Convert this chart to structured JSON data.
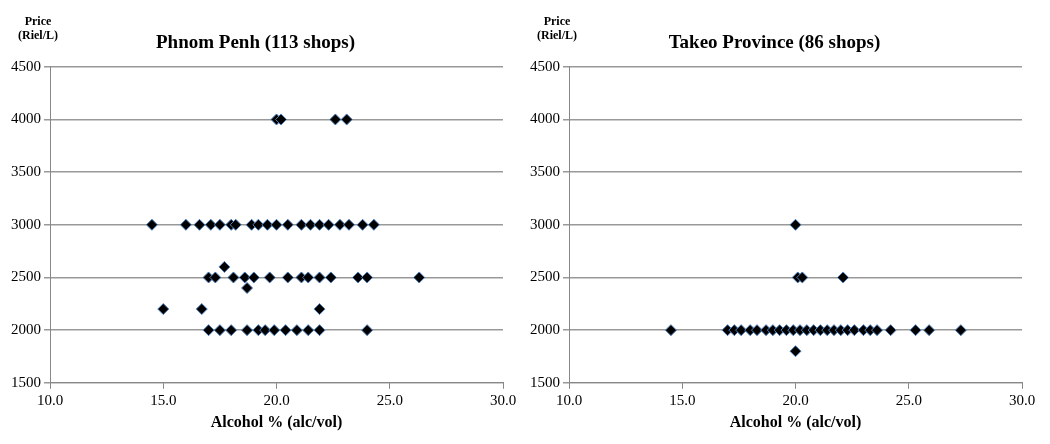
{
  "chart_data": [
    {
      "type": "scatter",
      "title": "Phnom Penh (113 shops)",
      "xlabel": "Alcohol % (alc/vol)",
      "ylabel": "Price (Riel/L)",
      "xlim": [
        10,
        30
      ],
      "xticks": [
        {
          "value": 10,
          "label": "10.0"
        },
        {
          "value": 15,
          "label": "15.0"
        },
        {
          "value": 20,
          "label": "20.0"
        },
        {
          "value": 25,
          "label": "25.0"
        },
        {
          "value": 30,
          "label": "30.0"
        }
      ],
      "ylim": [
        1500,
        4500
      ],
      "yticks": [
        1500,
        2000,
        2500,
        3000,
        3500,
        4000,
        4500
      ],
      "grid": "y",
      "legend": false,
      "marker": "diamond",
      "series": [
        {
          "color": "#000000",
          "x": [
            20.0,
            20.2,
            22.6,
            23.1,
            14.5,
            16.0,
            16.6,
            17.1,
            17.5,
            18.0,
            18.2,
            18.9,
            19.2,
            19.6,
            20.0,
            20.5,
            21.1,
            21.5,
            21.9,
            22.3,
            22.8,
            23.2,
            23.8,
            24.3,
            17.7,
            17.0,
            17.3,
            18.1,
            18.6,
            19.0,
            19.7,
            20.5,
            21.1,
            21.4,
            21.9,
            22.4,
            23.6,
            24.0,
            26.3,
            18.7,
            15.0,
            16.7,
            21.9,
            17.0,
            17.5,
            18.0,
            18.7,
            19.2,
            19.5,
            19.9,
            20.4,
            20.9,
            21.4,
            21.9,
            24.0
          ],
          "values": [
            4000,
            4000,
            4000,
            4000,
            3000,
            3000,
            3000,
            3000,
            3000,
            3000,
            3000,
            3000,
            3000,
            3000,
            3000,
            3000,
            3000,
            3000,
            3000,
            3000,
            3000,
            3000,
            3000,
            3000,
            2600,
            2500,
            2500,
            2500,
            2500,
            2500,
            2500,
            2500,
            2500,
            2500,
            2500,
            2500,
            2500,
            2500,
            2500,
            2400,
            2200,
            2200,
            2200,
            2000,
            2000,
            2000,
            2000,
            2000,
            2000,
            2000,
            2000,
            2000,
            2000,
            2000,
            2000
          ]
        }
      ]
    },
    {
      "type": "scatter",
      "title": "Takeo Province (86 shops)",
      "xlabel": "Alcohol % (alc/vol)",
      "ylabel": "Price (Riel/L)",
      "xlim": [
        10,
        30
      ],
      "xticks": [
        {
          "value": 10,
          "label": "10.0"
        },
        {
          "value": 15,
          "label": "15.0"
        },
        {
          "value": 20,
          "label": "20.0"
        },
        {
          "value": 25,
          "label": "25.0"
        },
        {
          "value": 30,
          "label": "30.0"
        }
      ],
      "ylim": [
        1500,
        4500
      ],
      "yticks": [
        1500,
        2000,
        2500,
        3000,
        3500,
        4000,
        4500
      ],
      "grid": "y",
      "legend": false,
      "marker": "diamond",
      "series": [
        {
          "color": "#000000",
          "x": [
            20.0,
            20.1,
            20.3,
            22.1,
            20.0,
            14.5,
            17.0,
            17.3,
            17.6,
            18.0,
            18.3,
            18.7,
            19.0,
            19.3,
            19.6,
            19.9,
            20.2,
            20.5,
            20.8,
            21.1,
            21.4,
            21.7,
            22.0,
            22.3,
            22.6,
            23.0,
            23.3,
            23.6,
            24.2,
            25.3,
            25.9,
            27.3
          ],
          "values": [
            3000,
            2500,
            2500,
            2500,
            1800,
            2000,
            2000,
            2000,
            2000,
            2000,
            2000,
            2000,
            2000,
            2000,
            2000,
            2000,
            2000,
            2000,
            2000,
            2000,
            2000,
            2000,
            2000,
            2000,
            2000,
            2000,
            2000,
            2000,
            2000,
            2000,
            2000,
            2000
          ]
        }
      ]
    }
  ]
}
